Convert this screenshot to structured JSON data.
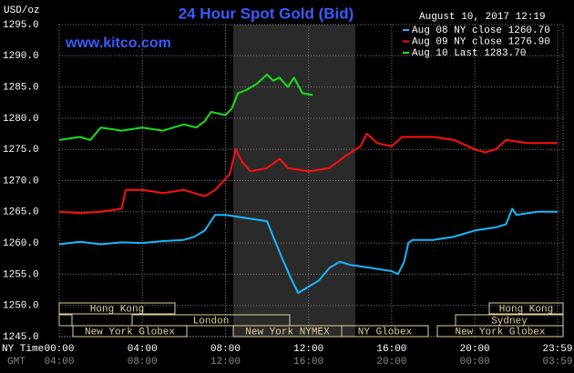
{
  "chart_data": {
    "type": "line",
    "title": "24 Hour Spot Gold (Bid)",
    "subtitle": "www.kitco.com",
    "timestamp": "August 10, 2017 12:19",
    "y_label": "USD/oz",
    "x_label": "NY Time",
    "x2_label": "GMT",
    "xlim": [
      0,
      23.983
    ],
    "xticks": [
      {
        "value": 0,
        "label": "00:00"
      },
      {
        "value": 4,
        "label": "04:00"
      },
      {
        "value": 8,
        "label": "08:00"
      },
      {
        "value": 12,
        "label": "12:00"
      },
      {
        "value": 16,
        "label": "16:00"
      },
      {
        "value": 20,
        "label": "20:00"
      },
      {
        "value": 23.983,
        "label": "23:59"
      }
    ],
    "x2ticks": [
      "04:00",
      "08:00",
      "12:00",
      "16:00",
      "20:00",
      "00:00",
      "03:59"
    ],
    "ylim": [
      1245,
      1295
    ],
    "yticks": [
      {
        "value": 1245,
        "label": "1245.0"
      },
      {
        "value": 1250,
        "label": "1250.0"
      },
      {
        "value": 1255,
        "label": "1255.0"
      },
      {
        "value": 1260,
        "label": "1260.0"
      },
      {
        "value": 1265,
        "label": "1265.0"
      },
      {
        "value": 1270,
        "label": "1270.0"
      },
      {
        "value": 1275,
        "label": "1275.0"
      },
      {
        "value": 1280,
        "label": "1280.0"
      },
      {
        "value": 1285,
        "label": "1285.0"
      },
      {
        "value": 1290,
        "label": "1290.0"
      },
      {
        "value": 1295,
        "label": "1295.0"
      }
    ],
    "grid": true,
    "sessions": [
      "Hong Kong",
      "London",
      "New York Globex",
      "New York NYMEX",
      "NY Globex",
      "Hong Kong",
      "Sydney",
      "New York Globex"
    ],
    "series": [
      {
        "name": "Aug 08 NY close 1260.70",
        "color": "#19b7ff",
        "x": [
          0,
          1,
          2,
          3,
          4,
          5,
          6,
          6.5,
          7,
          7.5,
          8,
          9,
          10,
          10.3,
          10.8,
          11.2,
          11.5,
          12,
          12.5,
          13,
          13.5,
          14,
          15,
          16,
          16.3,
          16.6,
          16.8,
          17,
          18,
          19,
          20,
          21,
          21.5,
          21.8,
          22,
          23,
          23.983
        ],
        "values": [
          1259.8,
          1260.2,
          1259.8,
          1260.1,
          1260,
          1260.3,
          1260.5,
          1261,
          1262,
          1264.5,
          1264.5,
          1264,
          1263.5,
          1261,
          1257,
          1254,
          1252,
          1253,
          1254,
          1256,
          1257,
          1256.5,
          1256,
          1255.5,
          1255,
          1257,
          1260,
          1260.5,
          1260.5,
          1261,
          1262,
          1262.5,
          1263,
          1265.5,
          1264.5,
          1265,
          1265
        ]
      },
      {
        "name": "Aug 09 NY close 1276.90",
        "color": "#ff1010",
        "x": [
          0,
          1,
          2,
          3,
          3.2,
          4,
          5,
          6,
          7,
          7.5,
          8.2,
          8.5,
          8.8,
          9.2,
          10,
          10.6,
          11,
          12,
          13,
          13.8,
          14.5,
          14.8,
          15.3,
          16,
          16.5,
          18,
          19,
          20,
          20.5,
          21,
          21.5,
          22.5,
          23.983
        ],
        "values": [
          1265,
          1264.8,
          1265,
          1265.5,
          1268.5,
          1268.5,
          1268,
          1268.5,
          1267.5,
          1268.5,
          1271,
          1275,
          1273,
          1271.5,
          1272,
          1273.5,
          1272,
          1271.5,
          1272,
          1274,
          1275.5,
          1277.5,
          1276,
          1275.5,
          1277,
          1277,
          1276.5,
          1275,
          1274.5,
          1275,
          1276.5,
          1276,
          1276
        ]
      },
      {
        "name": "Aug 10 Last 1283.70",
        "color": "#19e019",
        "x": [
          0,
          1,
          1.5,
          2,
          3,
          4,
          5,
          6,
          6.6,
          7,
          7.3,
          8,
          8.3,
          8.6,
          9,
          9.5,
          10,
          10.3,
          10.6,
          11,
          11.3,
          11.7,
          12.2
        ],
        "values": [
          1276.5,
          1277,
          1276.5,
          1278.5,
          1278,
          1278.5,
          1278,
          1279,
          1278.5,
          1279.5,
          1281,
          1280.5,
          1281.5,
          1284,
          1284.5,
          1285.5,
          1287,
          1286,
          1286.5,
          1285,
          1286.5,
          1284,
          1283.7
        ]
      }
    ]
  }
}
